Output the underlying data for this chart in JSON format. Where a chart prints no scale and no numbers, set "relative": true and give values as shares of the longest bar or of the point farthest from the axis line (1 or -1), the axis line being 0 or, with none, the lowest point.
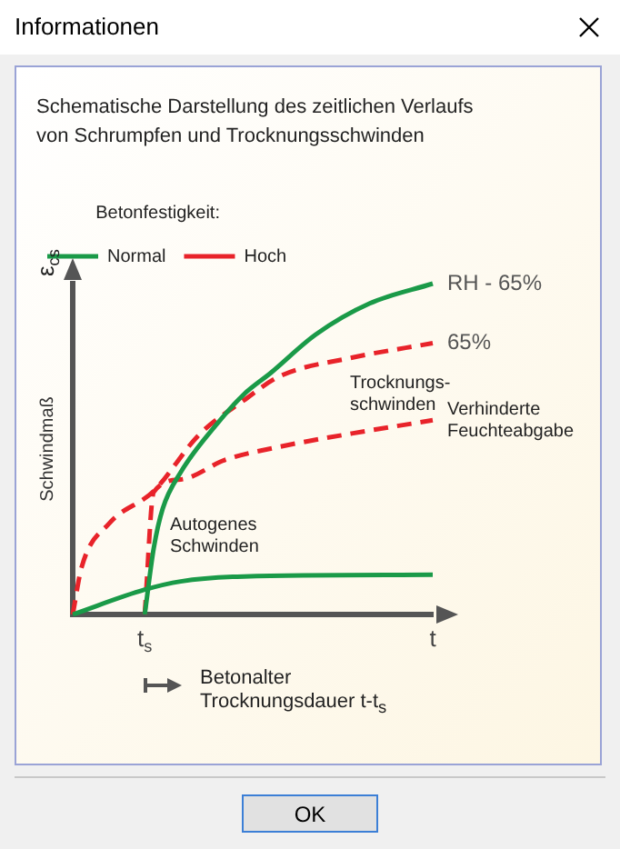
{
  "chart_data": {
    "type": "line",
    "title": "Informationen",
    "subtitle": "Schematische Darstellung des zeitlichen Verlaufs\nvon Schrumpfen und Trocknungsschwinden",
    "ylabel": "Schwindmaß",
    "xlabel": "Betonalter\nTrocknungsdauer t-t$_{s}$",
    "legend_title": "Betonfestigkeit:",
    "legend": "top left",
    "relative": true,
    "marker": "none",
    "grid": false,
    "categories": [
      null,
      null,
      null,
      null,
      null,
      null,
      null,
      null,
      "t$_{s}$",
      null,
      null,
      null,
      null,
      null,
      null,
      null,
      null,
      null,
      null,
      null,
      null,
      null,
      null,
      null,
      null,
      null,
      null,
      null,
      null,
      null,
      null,
      null,
      null,
      null,
      null,
      null,
      null,
      null,
      null,
      null,
      "t"
    ],
    "series": [
      {
        "name": "Normal",
        "color": "#1a9a48",
        "line_style": "solid",
        "values": [
          null,
          null,
          null,
          null,
          null,
          null,
          null,
          null,
          0,
          0.2,
          0.32,
          null,
          0.43,
          null,
          null,
          null,
          0.575,
          null,
          null,
          0.665,
          null,
          null,
          0.73,
          null,
          null,
          null,
          null,
          0.846,
          null,
          null,
          null,
          null,
          null,
          0.94,
          null,
          null,
          null,
          null,
          null,
          null,
          1.0
        ]
      },
      {
        "color": "#1a9a48",
        "line_style": "solid",
        "values": [
          0,
          null,
          null,
          null,
          null,
          null,
          null,
          null,
          0.075,
          null,
          null,
          null,
          0.1,
          null,
          null,
          null,
          null,
          null,
          null,
          0.115,
          null,
          null,
          null,
          null,
          null,
          null,
          null,
          null,
          null,
          null,
          null,
          null,
          null,
          null,
          null,
          null,
          null,
          null,
          null,
          null,
          0.12
        ]
      },
      {
        "name": "Hoch",
        "color": "#e8232a",
        "line_style": "dashed",
        "values": [
          0,
          0.144,
          null,
          null,
          0.274,
          null,
          null,
          null,
          null,
          0.373,
          null,
          null,
          null,
          null,
          0.542,
          null,
          null,
          null,
          null,
          0.647,
          null,
          null,
          null,
          0.72,
          null,
          null,
          null,
          null,
          null,
          null,
          null,
          0.776,
          null,
          null,
          null,
          null,
          null,
          null,
          null,
          null,
          0.82
        ]
      },
      {
        "color": "#e8232a",
        "line_style": "dashed",
        "values": [
          null,
          null,
          null,
          null,
          null,
          null,
          null,
          null,
          0,
          0.37,
          null,
          null,
          0.408,
          null,
          null,
          null,
          null,
          0.468,
          null,
          null,
          null,
          null,
          null,
          0.507,
          null,
          null,
          null,
          null,
          null,
          null,
          null,
          0.547,
          null,
          null,
          null,
          null,
          null,
          null,
          null,
          null,
          0.587
        ]
      }
    ],
    "annotations": [
      {
        "text": "RH - 65%",
        "x": "t",
        "y": 1
      },
      {
        "text": "65%",
        "x": "t",
        "y": 0.82
      },
      {
        "text": "Verhinderte\nFeuchteabgabe",
        "x": "t",
        "y": 0.587
      },
      "ε$_{cs}$",
      "Trocknungs-\nschwinden",
      "Autogenes\nSchwinden",
      "OK"
    ]
  }
}
